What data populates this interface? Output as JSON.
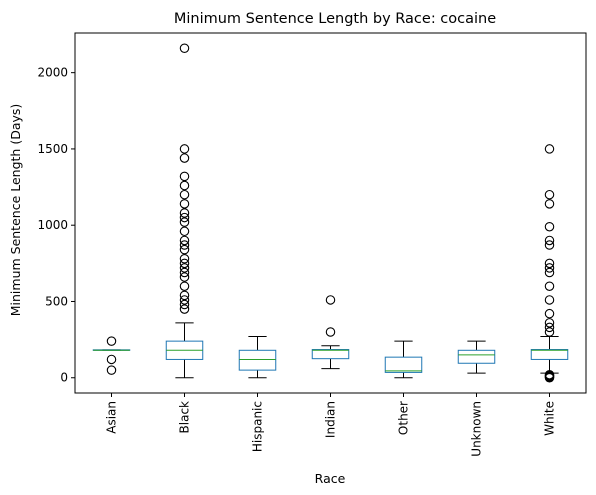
{
  "chart_data": {
    "type": "box",
    "title": "Minimum Sentence Length by Race: cocaine",
    "xlabel": "Race",
    "ylabel": "Minimum Sentence Length (Days)",
    "ylim": [
      -100,
      2260
    ],
    "yticks": [
      0,
      500,
      1000,
      1500,
      2000
    ],
    "grid": false,
    "colors": {
      "box": "#1f77b4",
      "median": "#2ca02c",
      "whisker": "#000000",
      "flier": "#000000"
    },
    "categories": [
      "Asian",
      "Black",
      "Hispanic",
      "Indian",
      "Other",
      "Unknown",
      "White"
    ],
    "boxes": [
      {
        "category": "Asian",
        "whisker_low": 180,
        "q1": 180,
        "median": 180,
        "q3": 183,
        "whisker_high": 183,
        "fliers": [
          240,
          120,
          50
        ]
      },
      {
        "category": "Black",
        "whisker_low": 0,
        "q1": 120,
        "median": 180,
        "q3": 240,
        "whisker_high": 360,
        "fliers": [
          450,
          480,
          510,
          540,
          600,
          660,
          690,
          720,
          750,
          780,
          840,
          870,
          900,
          960,
          1020,
          1050,
          1080,
          1140,
          1200,
          1260,
          1320,
          1440,
          1500,
          2160
        ]
      },
      {
        "category": "Hispanic",
        "whisker_low": 0,
        "q1": 50,
        "median": 120,
        "q3": 180,
        "whisker_high": 270,
        "fliers": []
      },
      {
        "category": "Indian",
        "whisker_low": 60,
        "q1": 125,
        "median": 180,
        "q3": 185,
        "whisker_high": 210,
        "fliers": [
          300,
          510
        ]
      },
      {
        "category": "Other",
        "whisker_low": 0,
        "q1": 35,
        "median": 45,
        "q3": 135,
        "whisker_high": 240,
        "fliers": []
      },
      {
        "category": "Unknown",
        "whisker_low": 30,
        "q1": 95,
        "median": 150,
        "q3": 180,
        "whisker_high": 240,
        "fliers": []
      },
      {
        "category": "White",
        "whisker_low": 30,
        "q1": 120,
        "median": 180,
        "q3": 185,
        "whisker_high": 270,
        "fliers": [
          0,
          5,
          10,
          15,
          20,
          300,
          330,
          360,
          420,
          510,
          600,
          690,
          720,
          750,
          870,
          900,
          990,
          1140,
          1200,
          1500
        ]
      }
    ]
  }
}
